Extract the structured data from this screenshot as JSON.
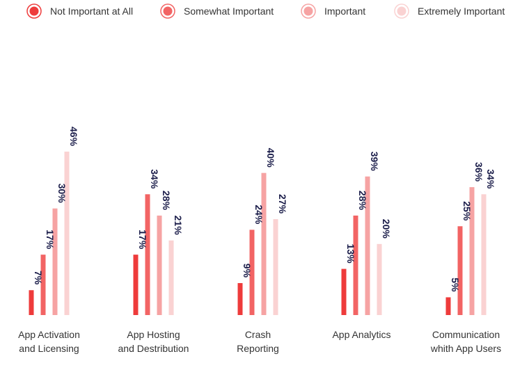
{
  "chart_data": {
    "type": "bar",
    "title": "",
    "xlabel": "",
    "ylabel": "",
    "ylim": [
      0,
      46
    ],
    "grid": false,
    "legend_position": "top",
    "value_suffix": "%",
    "categories": [
      [
        "App Activation",
        "and Licensing"
      ],
      [
        "App Hosting",
        "and Destribution"
      ],
      [
        "Crash",
        "Reporting"
      ],
      [
        "App Analytics"
      ],
      [
        "Communication",
        "whith App Users"
      ]
    ],
    "series": [
      {
        "name": "Not Important at All",
        "color": "#ee3b3b",
        "values": [
          7,
          17,
          9,
          13,
          5
        ]
      },
      {
        "name": "Somewhat Important",
        "color": "#f26464",
        "values": [
          17,
          34,
          24,
          28,
          25
        ]
      },
      {
        "name": "Important",
        "color": "#f6a3a3",
        "values": [
          30,
          28,
          40,
          39,
          36
        ]
      },
      {
        "name": "Extremely Important",
        "color": "#fad2d2",
        "values": [
          46,
          21,
          27,
          20,
          34
        ]
      }
    ]
  }
}
